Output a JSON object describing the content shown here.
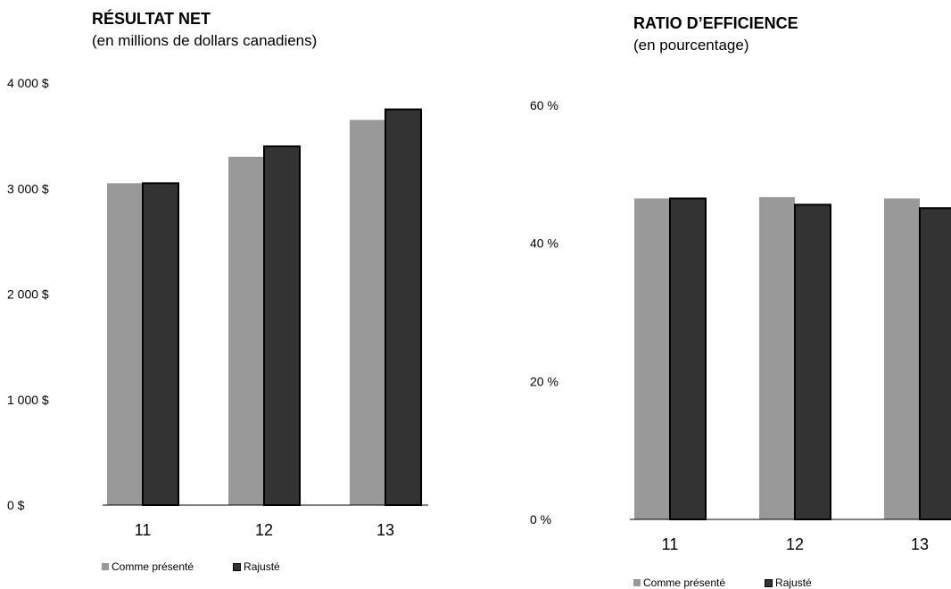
{
  "chart_data": [
    {
      "type": "bar",
      "title": "RÉSULTAT NET",
      "subtitle": "(en millions de dollars canadiens)",
      "categories": [
        "11",
        "12",
        "13"
      ],
      "series": [
        {
          "name": "Comme présenté",
          "values": [
            3050,
            3300,
            3650
          ],
          "color": "#999999"
        },
        {
          "name": "Rajusté",
          "values": [
            3050,
            3400,
            3750
          ],
          "color": "#333333"
        }
      ],
      "ylim": [
        0,
        4000
      ],
      "yticks": [
        0,
        1000,
        2000,
        3000,
        4000
      ],
      "ytick_labels": [
        "0 $",
        "1 000 $",
        "2 000 $",
        "3 000 $",
        "4 000 $"
      ],
      "grid": false,
      "legend": "bottom-left",
      "legend_labels": [
        "Comme présenté",
        "Rajusté"
      ]
    },
    {
      "type": "bar",
      "title": "RATIO D’EFFICIENCE",
      "subtitle": "(en pourcentage)",
      "categories": [
        "11",
        "12",
        "13"
      ],
      "series": [
        {
          "name": "Comme présenté",
          "values": [
            46.5,
            46.7,
            46.5
          ],
          "color": "#999999"
        },
        {
          "name": "Rajusté",
          "values": [
            46.5,
            45.6,
            45.1
          ],
          "color": "#333333"
        }
      ],
      "ylim": [
        0,
        60
      ],
      "yticks": [
        0,
        20,
        40,
        60
      ],
      "ytick_labels": [
        "0 %",
        "20 %",
        "40 %",
        "60 %"
      ],
      "grid": false,
      "legend": "bottom-left",
      "legend_labels": [
        "Comme présenté",
        "Rajusté"
      ]
    }
  ]
}
